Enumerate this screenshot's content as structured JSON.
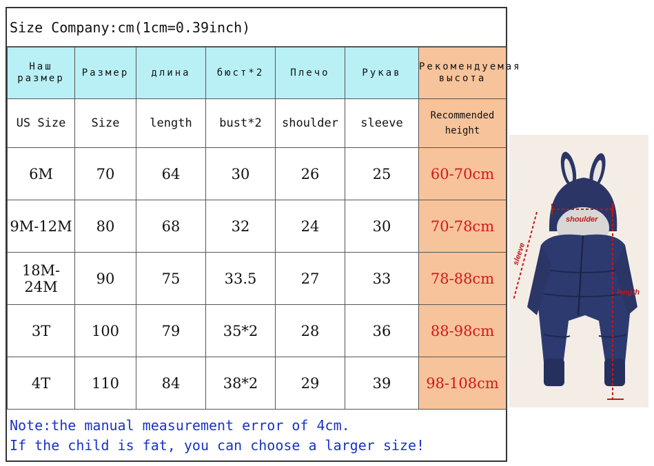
{
  "title": "Size Company:cm(1cm=0.39inch)",
  "headers_ru": [
    "Наш размер",
    "Размер",
    "длина",
    "бюст*2",
    "Плечо",
    "Рукав",
    "Рекомендуемая высота"
  ],
  "headers_en": [
    "US Size",
    "Size",
    "length",
    "bust*2",
    "shoulder",
    "sleeve",
    "Recommended height"
  ],
  "rows": [
    [
      "6M",
      "70",
      "64",
      "30",
      "26",
      "25",
      "60-70cm"
    ],
    [
      "9M-12M",
      "80",
      "68",
      "32",
      "24",
      "30",
      "70-78cm"
    ],
    [
      "18M-24M",
      "90",
      "75",
      "33.5",
      "27",
      "33",
      "78-88cm"
    ],
    [
      "3T",
      "100",
      "79",
      "35*2",
      "28",
      "36",
      "88-98cm"
    ],
    [
      "4T",
      "110",
      "84",
      "38*2",
      "29",
      "39",
      "98-108cm"
    ]
  ],
  "note": {
    "line1": "Note:the manual measurement error of 4cm.",
    "line2": "If the child is fat, you can choose a larger size!"
  },
  "photo": {
    "labels": {
      "shoulder": "shoulder",
      "sleeve": "sleeve",
      "length": "length"
    },
    "colors": {
      "garment": "#2b3566",
      "background": "#f3ede6",
      "measure": "#c01818"
    }
  },
  "colors": {
    "header_ru_bg": "#b9f0f6",
    "recommended_bg": "#f7c39a",
    "recommended_text": "#d21818",
    "note_text": "#1a33c8"
  }
}
